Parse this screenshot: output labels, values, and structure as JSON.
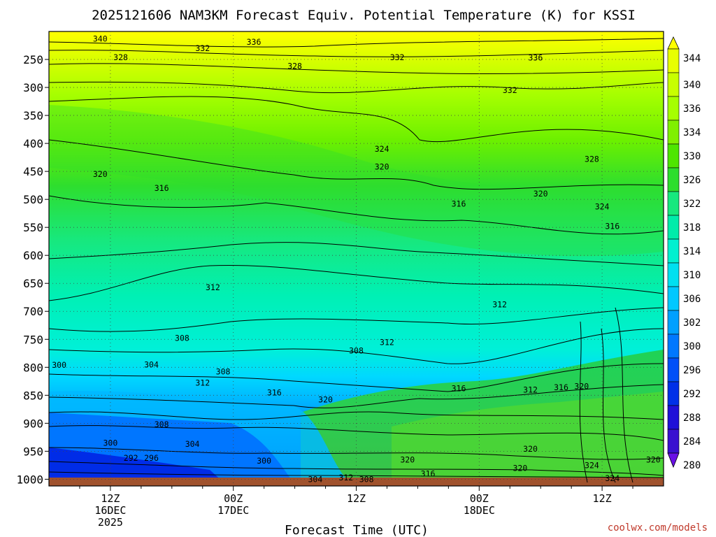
{
  "chart_data": {
    "type": "heatmap",
    "title": "2025121606 NAM3KM Forecast Equiv. Potential Temperature (K) for KSSI",
    "xlabel": "Forecast Time (UTC)",
    "ylabel": "",
    "x_ticks": [
      {
        "top": "12Z",
        "mid": "16DEC",
        "bottom": "2025"
      },
      {
        "top": "00Z",
        "mid": "17DEC",
        "bottom": ""
      },
      {
        "top": "12Z",
        "mid": "",
        "bottom": ""
      },
      {
        "top": "00Z",
        "mid": "18DEC",
        "bottom": ""
      },
      {
        "top": "12Z",
        "mid": "",
        "bottom": ""
      }
    ],
    "x_tick_hours": [
      6,
      18,
      30,
      42,
      54
    ],
    "x_range_hours": [
      0,
      60
    ],
    "y_ticks": [
      250,
      300,
      350,
      400,
      450,
      500,
      550,
      600,
      650,
      700,
      750,
      800,
      850,
      900,
      950,
      1000
    ],
    "y_range_hpa": [
      200,
      1012
    ],
    "colorbar_levels": [
      344,
      340,
      336,
      334,
      330,
      326,
      322,
      318,
      314,
      310,
      306,
      302,
      300,
      296,
      292,
      288,
      284,
      280
    ],
    "contour_labels": [
      {
        "text": "340",
        "hour": 5.0,
        "p": 213
      },
      {
        "text": "336",
        "hour": 20.0,
        "p": 219
      },
      {
        "text": "332",
        "hour": 15.0,
        "p": 230
      },
      {
        "text": "328",
        "hour": 7.0,
        "p": 246
      },
      {
        "text": "328",
        "hour": 24.0,
        "p": 262
      },
      {
        "text": "332",
        "hour": 34.0,
        "p": 246
      },
      {
        "text": "336",
        "hour": 47.5,
        "p": 247
      },
      {
        "text": "332",
        "hour": 45.0,
        "p": 305
      },
      {
        "text": "324",
        "hour": 32.5,
        "p": 410
      },
      {
        "text": "320",
        "hour": 32.5,
        "p": 442
      },
      {
        "text": "320",
        "hour": 5.0,
        "p": 455
      },
      {
        "text": "316",
        "hour": 11.0,
        "p": 480
      },
      {
        "text": "316",
        "hour": 40.0,
        "p": 508
      },
      {
        "text": "320",
        "hour": 48.0,
        "p": 490
      },
      {
        "text": "328",
        "hour": 53.0,
        "p": 428
      },
      {
        "text": "324",
        "hour": 54.0,
        "p": 513
      },
      {
        "text": "316",
        "hour": 55.0,
        "p": 548
      },
      {
        "text": "312",
        "hour": 16.0,
        "p": 657
      },
      {
        "text": "312",
        "hour": 44.0,
        "p": 688
      },
      {
        "text": "308",
        "hour": 13.0,
        "p": 748
      },
      {
        "text": "312",
        "hour": 33.0,
        "p": 755
      },
      {
        "text": "308",
        "hour": 30.0,
        "p": 770
      },
      {
        "text": "304",
        "hour": 10.0,
        "p": 795
      },
      {
        "text": "300",
        "hour": 1.0,
        "p": 796
      },
      {
        "text": "308",
        "hour": 17.0,
        "p": 808
      },
      {
        "text": "312",
        "hour": 15.0,
        "p": 828
      },
      {
        "text": "316",
        "hour": 22.0,
        "p": 845
      },
      {
        "text": "320",
        "hour": 27.0,
        "p": 858
      },
      {
        "text": "316",
        "hour": 40.0,
        "p": 838
      },
      {
        "text": "312",
        "hour": 47.0,
        "p": 840
      },
      {
        "text": "316",
        "hour": 50.0,
        "p": 836
      },
      {
        "text": "320",
        "hour": 52.0,
        "p": 834
      },
      {
        "text": "308",
        "hour": 11.0,
        "p": 902
      },
      {
        "text": "300",
        "hour": 6.0,
        "p": 935
      },
      {
        "text": "304",
        "hour": 14.0,
        "p": 937
      },
      {
        "text": "292",
        "hour": 8.0,
        "p": 962
      },
      {
        "text": "296",
        "hour": 10.0,
        "p": 962
      },
      {
        "text": "300",
        "hour": 21.0,
        "p": 967
      },
      {
        "text": "304",
        "hour": 26.0,
        "p": 1000
      },
      {
        "text": "312",
        "hour": 29.0,
        "p": 997
      },
      {
        "text": "308",
        "hour": 31.0,
        "p": 1000
      },
      {
        "text": "320",
        "hour": 35.0,
        "p": 965
      },
      {
        "text": "316",
        "hour": 37.0,
        "p": 990
      },
      {
        "text": "320",
        "hour": 47.0,
        "p": 946
      },
      {
        "text": "320",
        "hour": 46.0,
        "p": 980
      },
      {
        "text": "324",
        "hour": 53.0,
        "p": 975
      },
      {
        "text": "324",
        "hour": 55.0,
        "p": 998
      },
      {
        "text": "320",
        "hour": 59.0,
        "p": 965
      }
    ]
  },
  "credit": "coolwx.com/models"
}
